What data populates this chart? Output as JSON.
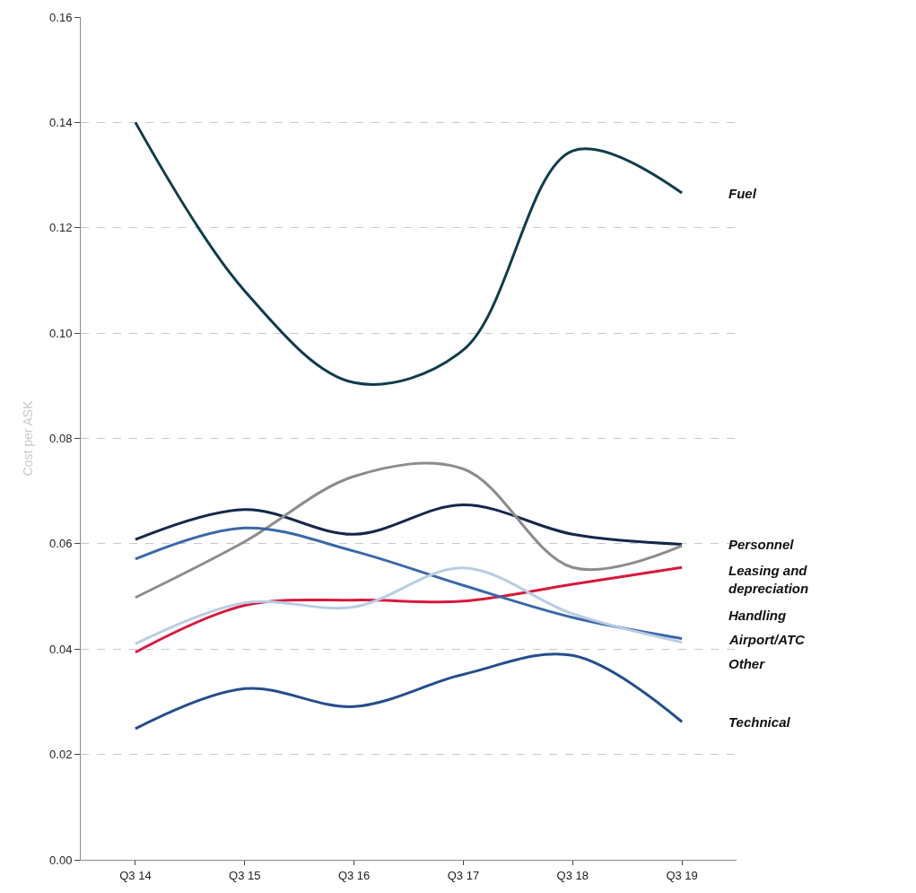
{
  "chart_data": {
    "type": "line",
    "ylabel": "Cost per ASK",
    "categories": [
      "Q3 14",
      "Q3 15",
      "Q3 16",
      "Q3 17",
      "Q3 18",
      "Q3 19"
    ],
    "series": [
      {
        "name": "Fuel",
        "color": "#0e3d4c",
        "values": [
          0.14,
          0.108,
          0.0906,
          0.0968,
          0.1346,
          0.1266
        ]
      },
      {
        "name": "Personnel",
        "color": "#14284b",
        "values": [
          0.0608,
          0.0665,
          0.0618,
          0.0674,
          0.0618,
          0.0599
        ]
      },
      {
        "name": "Leasing and depreciation",
        "color": "#8c8c8c",
        "values": [
          0.0498,
          0.0604,
          0.0728,
          0.0742,
          0.0555,
          0.0596
        ]
      },
      {
        "name": "Handling",
        "color": "#d7193c",
        "values": [
          0.0394,
          0.0483,
          0.0493,
          0.0491,
          0.0523,
          0.0555
        ]
      },
      {
        "name": "Airport/ATC",
        "color": "#3a68a8",
        "values": [
          0.0571,
          0.063,
          0.0586,
          0.0521,
          0.046,
          0.042
        ]
      },
      {
        "name": "Other",
        "color": "#b8cce4",
        "values": [
          0.041,
          0.0488,
          0.048,
          0.0554,
          0.0467,
          0.0413
        ]
      },
      {
        "name": "Technical",
        "color": "#244e8c",
        "values": [
          0.0249,
          0.0325,
          0.0291,
          0.0352,
          0.0388,
          0.0262
        ]
      }
    ],
    "ylim": [
      0,
      0.16
    ],
    "yticks": [
      {
        "value": 0,
        "label": "0.00"
      },
      {
        "value": 0.02,
        "label": "0.02"
      },
      {
        "value": 0.04,
        "label": "0.04"
      },
      {
        "value": 0.06,
        "label": "0.06"
      },
      {
        "value": 0.08,
        "label": "0.08"
      },
      {
        "value": 0.1,
        "label": "0.10"
      },
      {
        "value": 0.12,
        "label": "0.12"
      },
      {
        "value": 0.14,
        "label": "0.14"
      },
      {
        "value": 0.16,
        "label": "0.16"
      }
    ],
    "grid": "y",
    "legend": false,
    "marker": "none",
    "line_style": "solid"
  }
}
